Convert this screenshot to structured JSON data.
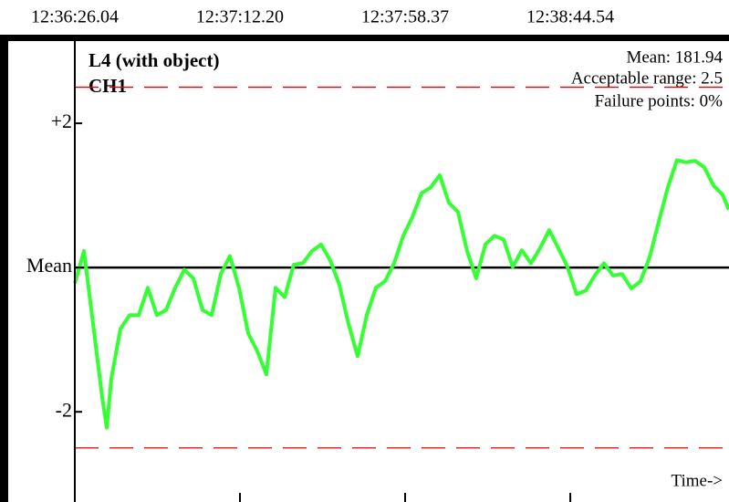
{
  "chart_data": {
    "type": "line",
    "title": "L4 (with object)",
    "subtitle": "CH1",
    "annotations": [
      "Mean: 181.94",
      "Acceptable range: 2.5",
      "Failure points: 0%"
    ],
    "x_label": "Time->",
    "color": "#33ff33",
    "x": [
      45386.04,
      45388.59,
      45391.14,
      45393.69,
      45394.97,
      45396.24,
      45398.79,
      45401.34,
      45403.89,
      45406.44,
      45408.99,
      45411.54,
      45414.09,
      45416.64,
      45419.19,
      45421.74,
      45424.29,
      45426.84,
      45429.39,
      45431.94,
      45434.49,
      45437.04,
      45439.59,
      45442.14,
      45444.69,
      45447.24,
      45449.79,
      45452.34,
      45454.89,
      45457.44,
      45459.99,
      45462.54,
      45465.09,
      45467.64,
      45470.19,
      45472.74,
      45475.29,
      45477.84,
      45480.39,
      45482.94,
      45485.49,
      45488.04,
      45490.59,
      45493.14,
      45495.69,
      45498.24,
      45500.79,
      45503.34,
      45505.89,
      45508.44,
      45510.99,
      45513.54,
      45516.09,
      45518.64,
      45521.19,
      45523.74,
      45526.29,
      45528.84,
      45531.39,
      45533.94,
      45536.49,
      45539.04,
      45541.59,
      45544.14,
      45546.69,
      45549.24,
      45551.79,
      45554.34,
      45556.89,
      45559.44,
      45561.99,
      45564.54,
      45567.09,
      45568.88
    ],
    "values": [
      -0.22,
      0.23,
      -0.78,
      -1.8,
      -2.22,
      -1.54,
      -0.85,
      -0.66,
      -0.66,
      -0.28,
      -0.66,
      -0.59,
      -0.28,
      -0.03,
      -0.15,
      -0.59,
      -0.66,
      -0.09,
      0.16,
      -0.28,
      -0.91,
      -1.16,
      -1.48,
      -0.28,
      -0.41,
      0.04,
      0.06,
      0.23,
      0.32,
      0.1,
      -0.24,
      -0.78,
      -1.23,
      -0.66,
      -0.28,
      -0.19,
      0.06,
      0.44,
      0.7,
      1.03,
      1.11,
      1.28,
      0.9,
      0.77,
      0.23,
      -0.15,
      0.32,
      0.44,
      0.39,
      0.01,
      0.24,
      0.06,
      0.27,
      0.52,
      0.27,
      0.01,
      -0.37,
      -0.32,
      -0.11,
      0.06,
      -0.11,
      -0.09,
      -0.29,
      -0.19,
      0.14,
      0.63,
      1.11,
      1.49,
      1.46,
      1.48,
      1.39,
      1.14,
      1.01,
      0.8
    ],
    "xlim": [
      45386.04,
      45568.9
    ],
    "xticks": [
      {
        "value": 45386.04,
        "label": "12:36:26.04"
      },
      {
        "value": 45432.2,
        "label": "12:37:12.20"
      },
      {
        "value": 45478.37,
        "label": "12:37:58.37"
      },
      {
        "value": 45524.54,
        "label": "12:38:44.54"
      }
    ],
    "ylim": [
      -3.25,
      3.14
    ],
    "yticks": [
      {
        "value": 2,
        "label": "+2"
      },
      {
        "value": 0,
        "label": "Mean"
      },
      -2
    ],
    "ref_lines": [
      {
        "value": 0,
        "color": "#000000",
        "dashed": false
      },
      {
        "value": 2.5,
        "color": "#e00000",
        "dashed": true
      },
      {
        "value": -2.5,
        "color": "#e00000",
        "dashed": true
      }
    ]
  }
}
